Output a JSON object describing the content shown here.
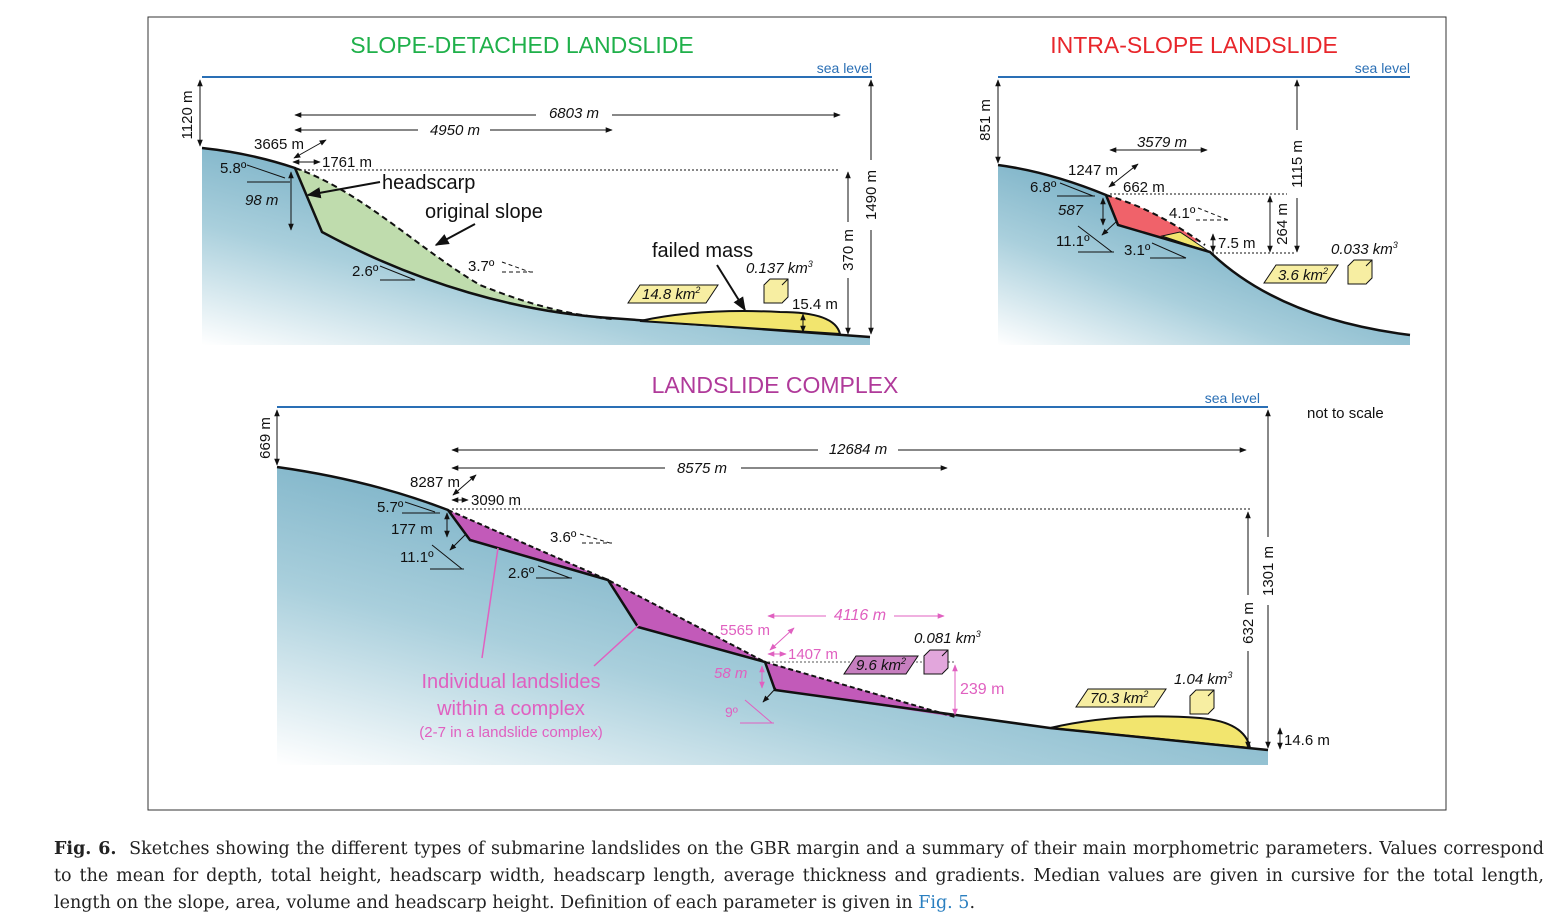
{
  "panels": {
    "slope_detached": {
      "title": "SLOPE-DETACHED LANDSLIDE",
      "title_color": "#1fb04a",
      "sea_level": "sea level",
      "depth": "1120 m",
      "total_length": "6803 m",
      "slope_length": "4950 m",
      "headscarp_width": "3665 m",
      "headscarp_length": "1761 m",
      "upper_gradient": "5.8º",
      "headscarp_height": "98 m",
      "headscarp_label": "headscarp",
      "original_slope_label": "original slope",
      "glide_gradient": "2.6º",
      "original_gradient": "3.7º",
      "failed_mass_label": "failed mass",
      "volume": "0.137 km",
      "area": "14.8 km",
      "thickness": "15.4 m",
      "height": "370 m",
      "total_height": "1490 m"
    },
    "intra_slope": {
      "title": "INTRA-SLOPE LANDSLIDE",
      "title_color": "#e8262b",
      "sea_level": "sea level",
      "depth": "851 m",
      "total_length": "3579 m",
      "headscarp_width": "1247 m",
      "headscarp_length": "662 m",
      "upper_gradient": "6.8º",
      "headscarp_height": "587",
      "scarp_gradient": "11.1º",
      "glide_gradient": "3.1º",
      "original_gradient": "4.1º",
      "thickness": "7.5 m",
      "height": "264 m",
      "total_height": "1115 m",
      "volume": "0.033 km",
      "area": "3.6 km"
    },
    "complex": {
      "title": "LANDSLIDE COMPLEX",
      "title_color": "#b03a9a",
      "sea_level": "sea level",
      "not_to_scale": "not to scale",
      "depth": "669 m",
      "total_length": "12684 m",
      "slope_length": "8575 m",
      "headscarp_width": "8287 m",
      "headscarp_length": "3090 m",
      "upper_gradient": "5.7º",
      "headscarp_height": "177 m",
      "scarp_gradient": "11.1º",
      "glide_gradient": "2.6º",
      "original_gradient": "3.6º",
      "individual_length": "4116 m",
      "individual_width": "5565 m",
      "individual_headscarp_length": "1407 m",
      "individual_headscarp_height": "58 m",
      "individual_scarp_gradient": "9º",
      "individual_area": "9.6 km",
      "individual_volume": "0.081 km",
      "individual_height": "239 m",
      "volume": "1.04 km",
      "area": "70.3 km",
      "thickness": "14.6 m",
      "height": "632 m",
      "total_height": "1301 m",
      "note_line1": "Individual landslides",
      "note_line2": "within a complex",
      "note_line3": "(2-7 in a landslide complex)"
    }
  },
  "units": {
    "sq": "2",
    "cube": "3"
  },
  "caption": {
    "label": "Fig. 6.",
    "text": "Sketches showing the different types of submarine landslides on the GBR margin and a summary of their main morphometric parameters. Values correspond to the mean for depth, total height, headscarp width, headscarp length, average thickness and gradients. Median values are given in cursive for the total length, length on the slope, area, volume and headscarp height. Definition of each parameter is given in",
    "link": "Fig. 5",
    "end": "."
  }
}
